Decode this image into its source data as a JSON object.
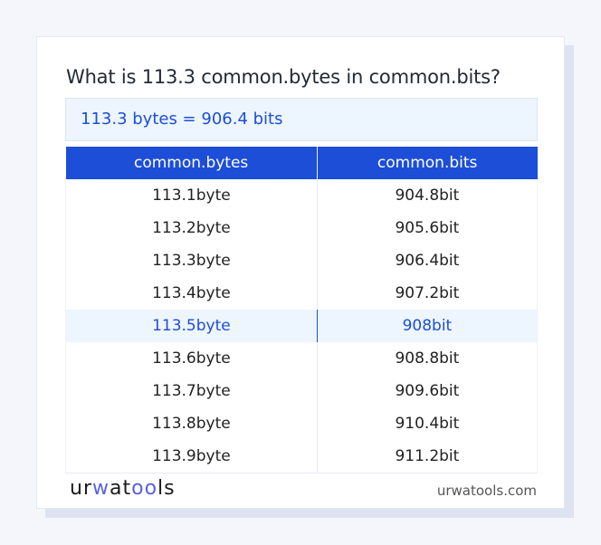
{
  "question": "What is 113.3 common.bytes in common.bits?",
  "result": "113.3 bytes = 906.4 bits",
  "table": {
    "headers": [
      "common.bytes",
      "common.bits"
    ],
    "rows": [
      [
        "113.1byte",
        "904.8bit"
      ],
      [
        "113.2byte",
        "905.6bit"
      ],
      [
        "113.3byte",
        "906.4bit"
      ],
      [
        "113.4byte",
        "907.2bit"
      ],
      [
        "113.5byte",
        "908bit"
      ],
      [
        "113.6byte",
        "908.8bit"
      ],
      [
        "113.7byte",
        "909.6bit"
      ],
      [
        "113.8byte",
        "910.4bit"
      ],
      [
        "113.9byte",
        "911.2bit"
      ]
    ],
    "highlighted_row": 4
  },
  "footer": {
    "logo": "urwatools",
    "site": "urwatools.com"
  },
  "colors": {
    "accent": "#1d4ed8",
    "highlight_bg": "#edf5ff"
  }
}
